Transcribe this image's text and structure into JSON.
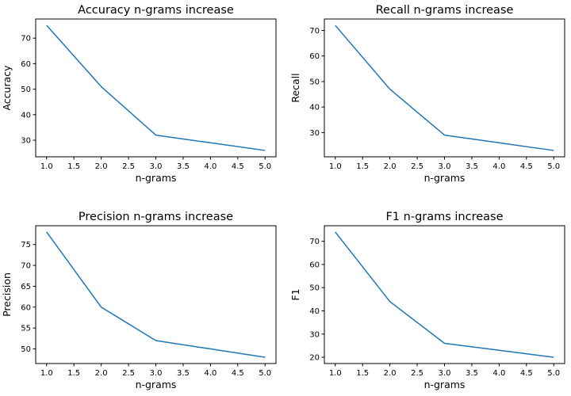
{
  "chart_data": [
    {
      "type": "line",
      "title": "Accuracy n-grams increase",
      "xlabel": "n-grams",
      "ylabel": "Accuracy",
      "x": [
        1,
        2,
        3,
        4,
        5
      ],
      "series": [
        {
          "values": [
            75,
            51,
            32,
            29,
            26
          ]
        }
      ],
      "xlim": [
        0.8,
        5.2
      ],
      "ylim": [
        23.5,
        77.5
      ],
      "xticks": [
        1.0,
        1.5,
        2.0,
        2.5,
        3.0,
        3.5,
        4.0,
        4.5,
        5.0
      ],
      "xtick_labels": [
        "1.0",
        "1.5",
        "2.0",
        "2.5",
        "3.0",
        "3.5",
        "4.0",
        "4.5",
        "5.0"
      ],
      "yticks": [
        30,
        40,
        50,
        60,
        70
      ],
      "ytick_labels": [
        "30",
        "40",
        "50",
        "60",
        "70"
      ],
      "grid": false,
      "color": "#1f77b4"
    },
    {
      "type": "line",
      "title": "Recall n-grams increase",
      "xlabel": "n-grams",
      "ylabel": "Recall",
      "x": [
        1,
        2,
        3,
        4,
        5
      ],
      "series": [
        {
          "values": [
            72,
            47,
            29,
            26,
            23
          ]
        }
      ],
      "xlim": [
        0.8,
        5.2
      ],
      "ylim": [
        20.5,
        74.5
      ],
      "xticks": [
        1.0,
        1.5,
        2.0,
        2.5,
        3.0,
        3.5,
        4.0,
        4.5,
        5.0
      ],
      "xtick_labels": [
        "1.0",
        "1.5",
        "2.0",
        "2.5",
        "3.0",
        "3.5",
        "4.0",
        "4.5",
        "5.0"
      ],
      "yticks": [
        30,
        40,
        50,
        60,
        70
      ],
      "ytick_labels": [
        "30",
        "40",
        "50",
        "60",
        "70"
      ],
      "grid": false,
      "color": "#1f77b4"
    },
    {
      "type": "line",
      "title": "Precision n-grams increase",
      "xlabel": "n-grams",
      "ylabel": "Precision",
      "x": [
        1,
        2,
        3,
        4,
        5
      ],
      "series": [
        {
          "values": [
            78,
            60,
            52,
            50,
            48
          ]
        }
      ],
      "xlim": [
        0.8,
        5.2
      ],
      "ylim": [
        46.5,
        79.5
      ],
      "xticks": [
        1.0,
        1.5,
        2.0,
        2.5,
        3.0,
        3.5,
        4.0,
        4.5,
        5.0
      ],
      "xtick_labels": [
        "1.0",
        "1.5",
        "2.0",
        "2.5",
        "3.0",
        "3.5",
        "4.0",
        "4.5",
        "5.0"
      ],
      "yticks": [
        50,
        55,
        60,
        65,
        70,
        75
      ],
      "ytick_labels": [
        "50",
        "55",
        "60",
        "65",
        "70",
        "75"
      ],
      "grid": false,
      "color": "#1f77b4"
    },
    {
      "type": "line",
      "title": "F1 n-grams increase",
      "xlabel": "n-grams",
      "ylabel": "F1",
      "x": [
        1,
        2,
        3,
        4,
        5
      ],
      "series": [
        {
          "values": [
            74,
            44,
            26,
            23,
            20
          ]
        }
      ],
      "xlim": [
        0.8,
        5.2
      ],
      "ylim": [
        17.3,
        76.7
      ],
      "xticks": [
        1.0,
        1.5,
        2.0,
        2.5,
        3.0,
        3.5,
        4.0,
        4.5,
        5.0
      ],
      "xtick_labels": [
        "1.0",
        "1.5",
        "2.0",
        "2.5",
        "3.0",
        "3.5",
        "4.0",
        "4.5",
        "5.0"
      ],
      "yticks": [
        20,
        30,
        40,
        50,
        60,
        70
      ],
      "ytick_labels": [
        "20",
        "30",
        "40",
        "50",
        "60",
        "70"
      ],
      "grid": false,
      "color": "#1f77b4"
    }
  ]
}
